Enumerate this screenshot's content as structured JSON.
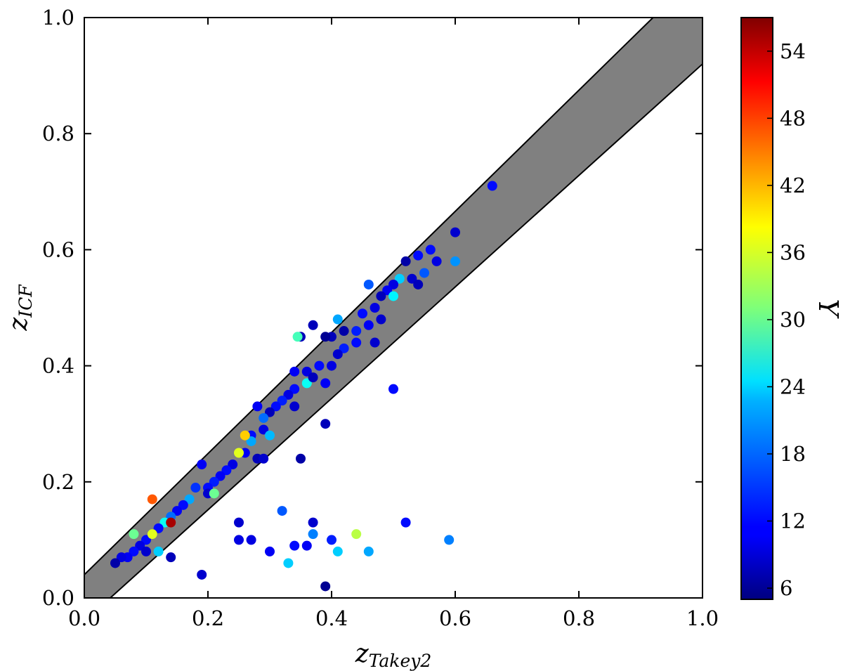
{
  "chart_data": {
    "type": "scatter",
    "title": "",
    "xlabel": "z",
    "xlabel_sub": "Takey2",
    "ylabel": "z",
    "ylabel_sub": "ICF",
    "xlim": [
      0.0,
      1.0
    ],
    "ylim": [
      0.0,
      1.0
    ],
    "x_ticks": [
      "0.0",
      "0.2",
      "0.4",
      "0.6",
      "0.8",
      "1.0"
    ],
    "y_ticks": [
      "0.0",
      "0.2",
      "0.4",
      "0.6",
      "0.8",
      "1.0"
    ],
    "grid": false,
    "band": {
      "description": "shaded region between the two diagonal lines",
      "upper_line": [
        [
          0.0,
          0.04
        ],
        [
          0.92,
          1.0
        ]
      ],
      "lower_line": [
        [
          0.042,
          0.0
        ],
        [
          1.0,
          0.92
        ]
      ],
      "fill_color": "#808080"
    },
    "colorbar": {
      "label": "Y",
      "range": [
        5,
        57
      ],
      "ticks": [
        "6",
        "12",
        "18",
        "24",
        "30",
        "36",
        "42",
        "48",
        "54"
      ],
      "colormap": "jet"
    },
    "point_fields": [
      "x",
      "y",
      "color_value"
    ],
    "points": [
      [
        0.66,
        0.71,
        12
      ],
      [
        0.6,
        0.63,
        9
      ],
      [
        0.6,
        0.58,
        19
      ],
      [
        0.56,
        0.6,
        12
      ],
      [
        0.57,
        0.58,
        10
      ],
      [
        0.54,
        0.59,
        12
      ],
      [
        0.52,
        0.58,
        7
      ],
      [
        0.55,
        0.56,
        16
      ],
      [
        0.53,
        0.55,
        9
      ],
      [
        0.54,
        0.54,
        8
      ],
      [
        0.51,
        0.55,
        22
      ],
      [
        0.5,
        0.54,
        10
      ],
      [
        0.49,
        0.53,
        11
      ],
      [
        0.46,
        0.54,
        16
      ],
      [
        0.48,
        0.52,
        8
      ],
      [
        0.5,
        0.52,
        24
      ],
      [
        0.47,
        0.5,
        10
      ],
      [
        0.45,
        0.49,
        12
      ],
      [
        0.46,
        0.47,
        11
      ],
      [
        0.44,
        0.46,
        13
      ],
      [
        0.41,
        0.48,
        20
      ],
      [
        0.48,
        0.48,
        9
      ],
      [
        0.47,
        0.44,
        9
      ],
      [
        0.44,
        0.44,
        12
      ],
      [
        0.42,
        0.46,
        7
      ],
      [
        0.4,
        0.45,
        8
      ],
      [
        0.39,
        0.45,
        6
      ],
      [
        0.37,
        0.47,
        8
      ],
      [
        0.35,
        0.45,
        8
      ],
      [
        0.345,
        0.45,
        28
      ],
      [
        0.42,
        0.43,
        13
      ],
      [
        0.41,
        0.42,
        9
      ],
      [
        0.4,
        0.4,
        10
      ],
      [
        0.38,
        0.4,
        12
      ],
      [
        0.36,
        0.39,
        10
      ],
      [
        0.34,
        0.39,
        11
      ],
      [
        0.36,
        0.37,
        25
      ],
      [
        0.37,
        0.38,
        8
      ],
      [
        0.34,
        0.36,
        12
      ],
      [
        0.33,
        0.35,
        10
      ],
      [
        0.32,
        0.34,
        13
      ],
      [
        0.34,
        0.33,
        9
      ],
      [
        0.31,
        0.33,
        12
      ],
      [
        0.3,
        0.32,
        8
      ],
      [
        0.29,
        0.31,
        17
      ],
      [
        0.28,
        0.33,
        11
      ],
      [
        0.29,
        0.29,
        10
      ],
      [
        0.3,
        0.28,
        21
      ],
      [
        0.27,
        0.28,
        12
      ],
      [
        0.27,
        0.27,
        20
      ],
      [
        0.28,
        0.24,
        8
      ],
      [
        0.29,
        0.24,
        9
      ],
      [
        0.26,
        0.25,
        11
      ],
      [
        0.25,
        0.25,
        36
      ],
      [
        0.24,
        0.23,
        10
      ],
      [
        0.23,
        0.22,
        12
      ],
      [
        0.22,
        0.21,
        11
      ],
      [
        0.21,
        0.2,
        13
      ],
      [
        0.2,
        0.19,
        12
      ],
      [
        0.19,
        0.23,
        11
      ],
      [
        0.2,
        0.18,
        9
      ],
      [
        0.18,
        0.19,
        14
      ],
      [
        0.17,
        0.17,
        20
      ],
      [
        0.16,
        0.16,
        12
      ],
      [
        0.15,
        0.15,
        11
      ],
      [
        0.14,
        0.14,
        17
      ],
      [
        0.13,
        0.13,
        25
      ],
      [
        0.14,
        0.13,
        55
      ],
      [
        0.12,
        0.12,
        12
      ],
      [
        0.11,
        0.11,
        10
      ],
      [
        0.1,
        0.1,
        12
      ],
      [
        0.09,
        0.09,
        10
      ],
      [
        0.08,
        0.08,
        12
      ],
      [
        0.07,
        0.07,
        11
      ],
      [
        0.06,
        0.07,
        10
      ],
      [
        0.05,
        0.06,
        7
      ],
      [
        0.11,
        0.17,
        46
      ],
      [
        0.11,
        0.11,
        36
      ],
      [
        0.08,
        0.11,
        30
      ],
      [
        0.1,
        0.08,
        9
      ],
      [
        0.21,
        0.18,
        30
      ],
      [
        0.26,
        0.28,
        40
      ],
      [
        0.39,
        0.37,
        11
      ],
      [
        0.35,
        0.24,
        7
      ],
      [
        0.39,
        0.3,
        8
      ],
      [
        0.5,
        0.36,
        12
      ],
      [
        0.14,
        0.07,
        8
      ],
      [
        0.12,
        0.08,
        22
      ],
      [
        0.19,
        0.04,
        9
      ],
      [
        0.25,
        0.13,
        9
      ],
      [
        0.25,
        0.1,
        10
      ],
      [
        0.27,
        0.1,
        10
      ],
      [
        0.3,
        0.08,
        11
      ],
      [
        0.32,
        0.15,
        16
      ],
      [
        0.33,
        0.06,
        22
      ],
      [
        0.34,
        0.09,
        12
      ],
      [
        0.36,
        0.09,
        11
      ],
      [
        0.37,
        0.13,
        9
      ],
      [
        0.37,
        0.11,
        18
      ],
      [
        0.39,
        0.02,
        6
      ],
      [
        0.4,
        0.1,
        13
      ],
      [
        0.41,
        0.08,
        22
      ],
      [
        0.44,
        0.11,
        34
      ],
      [
        0.46,
        0.08,
        20
      ],
      [
        0.52,
        0.13,
        12
      ],
      [
        0.59,
        0.1,
        18
      ]
    ]
  }
}
